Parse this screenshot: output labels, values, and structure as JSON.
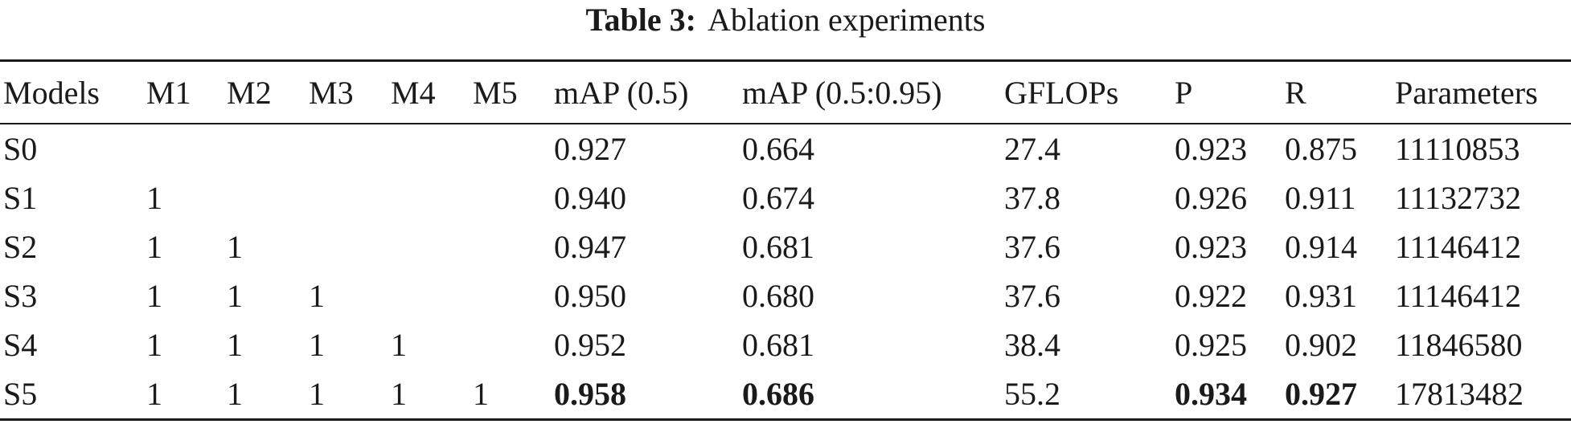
{
  "caption": {
    "label": "Table 3:",
    "text": "Ablation experiments"
  },
  "table": {
    "columns": [
      "Models",
      "M1",
      "M2",
      "M3",
      "M4",
      "M5",
      "mAP (0.5)",
      "mAP (0.5:0.95)",
      "GFLOPs",
      "P",
      "R",
      "Parameters"
    ],
    "rows": [
      {
        "cells": [
          "S0",
          "",
          "",
          "",
          "",
          "",
          "0.927",
          "0.664",
          "27.4",
          "0.923",
          "0.875",
          "11110853"
        ],
        "bold": []
      },
      {
        "cells": [
          "S1",
          "1",
          "",
          "",
          "",
          "",
          "0.940",
          "0.674",
          "37.8",
          "0.926",
          "0.911",
          "11132732"
        ],
        "bold": []
      },
      {
        "cells": [
          "S2",
          "1",
          "1",
          "",
          "",
          "",
          "0.947",
          "0.681",
          "37.6",
          "0.923",
          "0.914",
          "11146412"
        ],
        "bold": []
      },
      {
        "cells": [
          "S3",
          "1",
          "1",
          "1",
          "",
          "",
          "0.950",
          "0.680",
          "37.6",
          "0.922",
          "0.931",
          "11146412"
        ],
        "bold": []
      },
      {
        "cells": [
          "S4",
          "1",
          "1",
          "1",
          "1",
          "",
          "0.952",
          "0.681",
          "38.4",
          "0.925",
          "0.902",
          "11846580"
        ],
        "bold": []
      },
      {
        "cells": [
          "S5",
          "1",
          "1",
          "1",
          "1",
          "1",
          "0.958",
          "0.686",
          "55.2",
          "0.934",
          "0.927",
          "17813482"
        ],
        "bold": [
          6,
          7,
          9,
          10
        ]
      }
    ]
  }
}
